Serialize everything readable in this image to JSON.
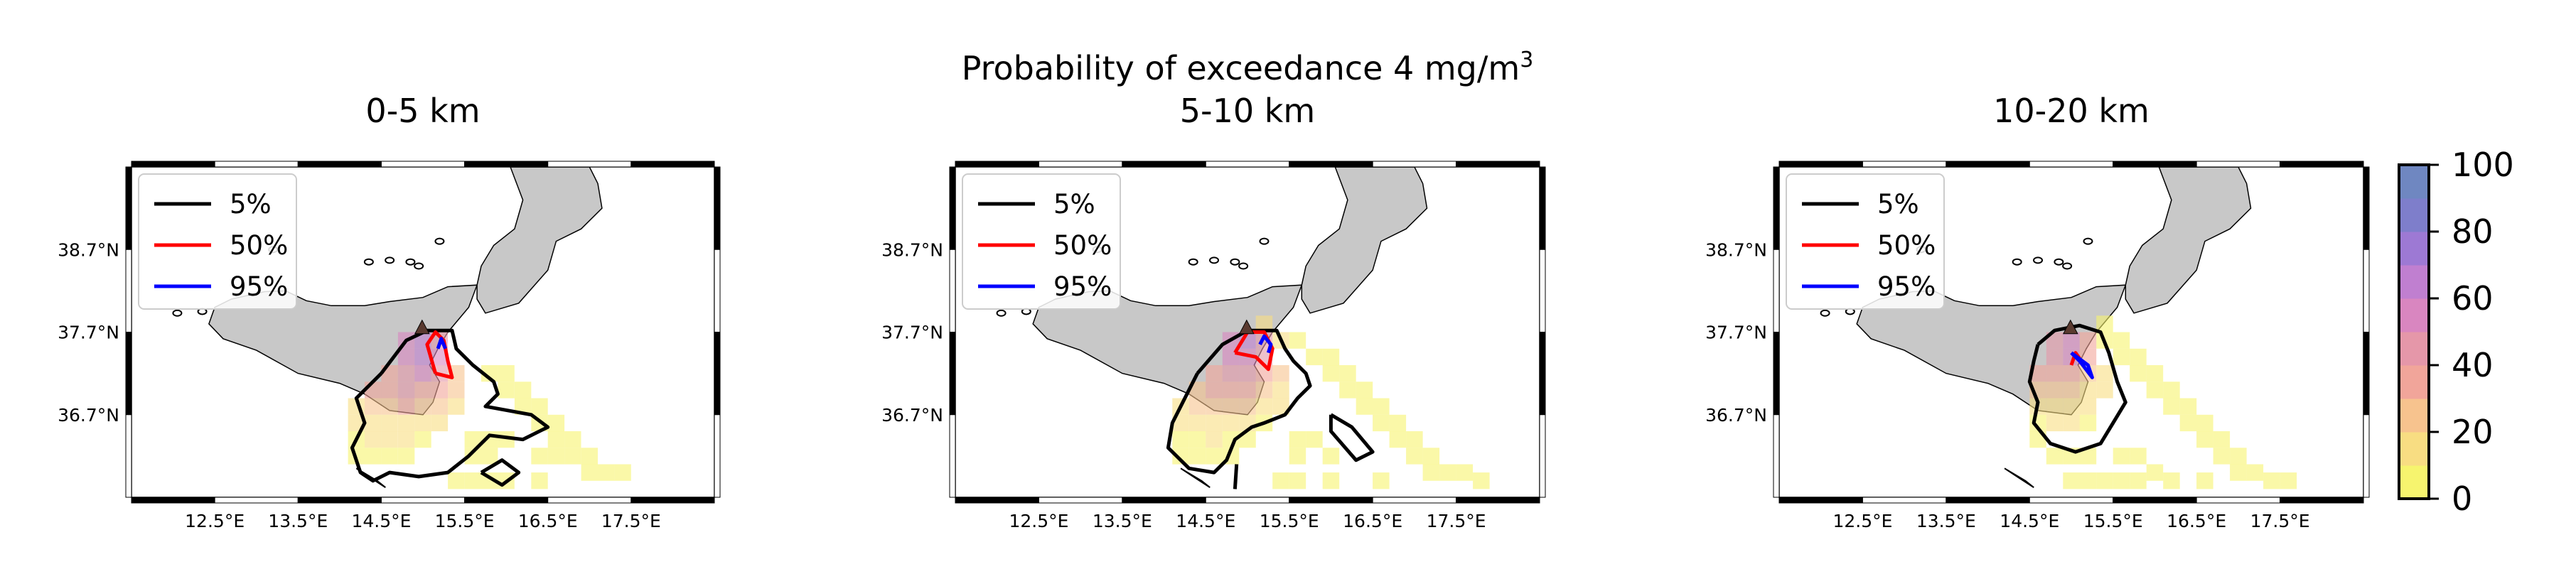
{
  "figure": {
    "suptitle_line1": "Probability of exceedance 4 mg/m",
    "suptitle_sup": "3"
  },
  "chart_data": {
    "type": "heatmap",
    "title": "Probability of exceedance 4 mg/m3",
    "unit": "%",
    "panels": [
      {
        "title": "0-5 km",
        "lon_ticks": [
          "12.5°E",
          "13.5°E",
          "14.5°E",
          "15.5°E",
          "16.5°E",
          "17.5°E"
        ],
        "lat_ticks": [
          "38.7°N",
          "37.7°N",
          "36.7°N"
        ],
        "lon_range": [
          11.5,
          18.5
        ],
        "lat_range": [
          35.7,
          39.7
        ],
        "contour_levels": [
          5,
          50,
          95
        ],
        "cells": [
          [
            16.0,
            37.0,
            5
          ],
          [
            16.2,
            37.0,
            5
          ],
          [
            16.2,
            36.8,
            5
          ],
          [
            16.4,
            36.8,
            5
          ],
          [
            16.4,
            36.6,
            5
          ],
          [
            16.6,
            36.6,
            5
          ],
          [
            16.6,
            36.4,
            5
          ],
          [
            16.8,
            36.4,
            5
          ],
          [
            16.8,
            36.2,
            5
          ],
          [
            17.0,
            36.2,
            5
          ],
          [
            17.0,
            36.0,
            5
          ],
          [
            17.2,
            36.0,
            5
          ],
          [
            17.4,
            36.0,
            5
          ],
          [
            15.8,
            37.2,
            8
          ],
          [
            16.0,
            37.2,
            5
          ],
          [
            15.6,
            36.4,
            8
          ],
          [
            15.8,
            36.4,
            5
          ],
          [
            16.0,
            36.4,
            5
          ],
          [
            15.6,
            36.2,
            5
          ],
          [
            15.8,
            36.2,
            5
          ],
          [
            16.4,
            36.2,
            5
          ],
          [
            16.6,
            36.2,
            5
          ],
          [
            15.4,
            35.9,
            8
          ],
          [
            15.6,
            35.9,
            5
          ],
          [
            15.8,
            35.9,
            5
          ],
          [
            16.0,
            35.9,
            5
          ],
          [
            16.4,
            35.9,
            5
          ],
          [
            14.8,
            37.6,
            55
          ],
          [
            15.0,
            37.6,
            60
          ],
          [
            15.2,
            37.6,
            45
          ],
          [
            14.8,
            37.4,
            50
          ],
          [
            15.0,
            37.4,
            60
          ],
          [
            15.2,
            37.4,
            50
          ],
          [
            14.6,
            37.2,
            38
          ],
          [
            14.8,
            37.2,
            45
          ],
          [
            15.0,
            37.2,
            50
          ],
          [
            15.2,
            37.2,
            40
          ],
          [
            15.4,
            37.2,
            25
          ],
          [
            14.4,
            37.0,
            30
          ],
          [
            14.6,
            37.0,
            35
          ],
          [
            14.8,
            37.0,
            40
          ],
          [
            15.0,
            37.0,
            38
          ],
          [
            15.2,
            37.0,
            30
          ],
          [
            15.4,
            37.0,
            22
          ],
          [
            14.2,
            36.8,
            18
          ],
          [
            14.4,
            36.8,
            22
          ],
          [
            14.6,
            36.8,
            28
          ],
          [
            14.8,
            36.8,
            30
          ],
          [
            15.0,
            36.8,
            25
          ],
          [
            15.2,
            36.8,
            20
          ],
          [
            15.4,
            36.8,
            15
          ],
          [
            14.2,
            36.6,
            12
          ],
          [
            14.4,
            36.6,
            15
          ],
          [
            14.6,
            36.6,
            18
          ],
          [
            14.8,
            36.6,
            18
          ],
          [
            15.0,
            36.6,
            15
          ],
          [
            15.2,
            36.6,
            10
          ],
          [
            14.2,
            36.4,
            8
          ],
          [
            14.4,
            36.4,
            10
          ],
          [
            14.6,
            36.4,
            10
          ],
          [
            14.8,
            36.4,
            10
          ],
          [
            15.0,
            36.4,
            8
          ],
          [
            14.2,
            36.2,
            5
          ],
          [
            14.4,
            36.2,
            8
          ],
          [
            14.6,
            36.2,
            8
          ],
          [
            14.8,
            36.2,
            5
          ]
        ]
      },
      {
        "title": "5-10 km",
        "lon_ticks": [
          "12.5°E",
          "13.5°E",
          "14.5°E",
          "15.5°E",
          "16.5°E",
          "17.5°E"
        ],
        "lat_ticks": [
          "38.7°N",
          "37.7°N",
          "36.7°N"
        ],
        "lon_range": [
          11.5,
          18.5
        ],
        "lat_range": [
          35.7,
          39.7
        ],
        "contour_levels": [
          5,
          50,
          95
        ],
        "cells": [
          [
            15.2,
            37.8,
            10
          ],
          [
            15.4,
            37.6,
            12
          ],
          [
            15.6,
            37.6,
            8
          ],
          [
            15.8,
            37.4,
            8
          ],
          [
            16.0,
            37.4,
            5
          ],
          [
            16.0,
            37.2,
            5
          ],
          [
            16.2,
            37.2,
            5
          ],
          [
            16.2,
            37.0,
            5
          ],
          [
            16.4,
            37.0,
            5
          ],
          [
            16.4,
            36.8,
            5
          ],
          [
            16.6,
            36.8,
            5
          ],
          [
            16.6,
            36.6,
            5
          ],
          [
            16.8,
            36.6,
            5
          ],
          [
            16.8,
            36.4,
            5
          ],
          [
            17.0,
            36.4,
            5
          ],
          [
            17.0,
            36.2,
            5
          ],
          [
            17.2,
            36.2,
            5
          ],
          [
            17.2,
            36.0,
            5
          ],
          [
            17.4,
            36.0,
            5
          ],
          [
            17.6,
            36.0,
            5
          ],
          [
            17.8,
            35.9,
            5
          ],
          [
            15.6,
            36.4,
            8
          ],
          [
            15.8,
            36.4,
            5
          ],
          [
            16.0,
            36.2,
            5
          ],
          [
            15.6,
            36.2,
            5
          ],
          [
            15.4,
            35.9,
            8
          ],
          [
            15.6,
            35.9,
            5
          ],
          [
            16.0,
            35.9,
            5
          ],
          [
            16.6,
            35.9,
            5
          ],
          [
            14.8,
            37.6,
            55
          ],
          [
            15.0,
            37.6,
            60
          ],
          [
            15.2,
            37.6,
            40
          ],
          [
            14.8,
            37.4,
            55
          ],
          [
            15.0,
            37.4,
            55
          ],
          [
            15.2,
            37.4,
            42
          ],
          [
            14.6,
            37.2,
            35
          ],
          [
            14.8,
            37.2,
            45
          ],
          [
            15.0,
            37.2,
            42
          ],
          [
            15.2,
            37.2,
            32
          ],
          [
            15.4,
            37.2,
            20
          ],
          [
            14.4,
            37.0,
            28
          ],
          [
            14.6,
            37.0,
            32
          ],
          [
            14.8,
            37.0,
            35
          ],
          [
            15.0,
            37.0,
            30
          ],
          [
            15.2,
            37.0,
            25
          ],
          [
            15.4,
            37.0,
            18
          ],
          [
            14.2,
            36.8,
            15
          ],
          [
            14.4,
            36.8,
            20
          ],
          [
            14.6,
            36.8,
            25
          ],
          [
            14.8,
            36.8,
            25
          ],
          [
            15.0,
            36.8,
            20
          ],
          [
            15.2,
            36.8,
            15
          ],
          [
            15.4,
            36.8,
            12
          ],
          [
            14.2,
            36.6,
            10
          ],
          [
            14.4,
            36.6,
            12
          ],
          [
            14.6,
            36.6,
            15
          ],
          [
            14.8,
            36.6,
            15
          ],
          [
            15.0,
            36.6,
            12
          ],
          [
            15.2,
            36.6,
            8
          ],
          [
            14.2,
            36.4,
            8
          ],
          [
            14.4,
            36.4,
            8
          ],
          [
            14.6,
            36.4,
            10
          ],
          [
            14.8,
            36.4,
            8
          ],
          [
            15.0,
            36.4,
            5
          ],
          [
            14.2,
            36.2,
            5
          ],
          [
            14.4,
            36.2,
            5
          ],
          [
            14.6,
            36.2,
            8
          ],
          [
            14.8,
            36.2,
            5
          ]
        ]
      },
      {
        "title": "10-20 km",
        "lon_ticks": [
          "12.5°E",
          "13.5°E",
          "14.5°E",
          "15.5°E",
          "16.5°E",
          "17.5°E"
        ],
        "lat_ticks": [
          "38.7°N",
          "37.7°N",
          "36.7°N"
        ],
        "lon_range": [
          11.5,
          18.5
        ],
        "lat_range": [
          35.7,
          39.7
        ],
        "contour_levels": [
          5,
          50,
          95
        ],
        "cells": [
          [
            15.4,
            37.8,
            8
          ],
          [
            15.4,
            37.6,
            8
          ],
          [
            15.6,
            37.6,
            5
          ],
          [
            15.6,
            37.4,
            5
          ],
          [
            15.8,
            37.4,
            5
          ],
          [
            15.8,
            37.2,
            5
          ],
          [
            16.0,
            37.2,
            5
          ],
          [
            16.0,
            37.0,
            5
          ],
          [
            16.2,
            37.0,
            5
          ],
          [
            16.2,
            36.8,
            5
          ],
          [
            16.4,
            36.8,
            5
          ],
          [
            16.4,
            36.6,
            5
          ],
          [
            16.6,
            36.6,
            5
          ],
          [
            16.6,
            36.4,
            5
          ],
          [
            16.8,
            36.4,
            5
          ],
          [
            16.8,
            36.2,
            5
          ],
          [
            17.0,
            36.2,
            5
          ],
          [
            17.0,
            36.0,
            5
          ],
          [
            17.2,
            36.0,
            5
          ],
          [
            17.4,
            35.9,
            5
          ],
          [
            17.6,
            35.9,
            5
          ],
          [
            15.6,
            36.2,
            5
          ],
          [
            15.8,
            36.2,
            5
          ],
          [
            16.0,
            36.0,
            5
          ],
          [
            15.6,
            35.9,
            5
          ],
          [
            15.8,
            35.9,
            5
          ],
          [
            16.2,
            35.9,
            5
          ],
          [
            16.6,
            35.9,
            5
          ],
          [
            14.6,
            36.4,
            5
          ],
          [
            14.8,
            36.2,
            5
          ],
          [
            15.0,
            36.2,
            5
          ],
          [
            15.2,
            36.2,
            5
          ],
          [
            15.0,
            35.9,
            5
          ],
          [
            15.2,
            35.9,
            5
          ],
          [
            15.4,
            35.9,
            5
          ],
          [
            14.8,
            37.6,
            40
          ],
          [
            15.0,
            37.6,
            50
          ],
          [
            15.2,
            37.6,
            35
          ],
          [
            14.8,
            37.4,
            45
          ],
          [
            15.0,
            37.4,
            50
          ],
          [
            15.2,
            37.4,
            38
          ],
          [
            14.6,
            37.2,
            30
          ],
          [
            14.8,
            37.2,
            38
          ],
          [
            15.0,
            37.2,
            35
          ],
          [
            15.2,
            37.2,
            25
          ],
          [
            15.4,
            37.2,
            15
          ],
          [
            14.6,
            37.0,
            22
          ],
          [
            14.8,
            37.0,
            28
          ],
          [
            15.0,
            37.0,
            25
          ],
          [
            15.2,
            37.0,
            18
          ],
          [
            15.4,
            37.0,
            12
          ],
          [
            14.6,
            36.8,
            15
          ],
          [
            14.8,
            36.8,
            18
          ],
          [
            15.0,
            36.8,
            15
          ],
          [
            15.2,
            36.8,
            10
          ],
          [
            14.6,
            36.6,
            8
          ],
          [
            14.8,
            36.6,
            10
          ],
          [
            15.0,
            36.6,
            10
          ],
          [
            15.2,
            36.6,
            8
          ]
        ]
      }
    ],
    "legend": {
      "placement": "upper-left",
      "entries": [
        {
          "label": "5%",
          "color": "#000000"
        },
        {
          "label": "50%",
          "color": "#ff0000"
        },
        {
          "label": "95%",
          "color": "#0000ff"
        }
      ]
    },
    "colorbar": {
      "ticks": [
        "0",
        "20",
        "40",
        "60",
        "80",
        "100"
      ],
      "range": [
        0,
        100
      ],
      "colors": [
        "#f6f46e",
        "#f8dd82",
        "#f7c38e",
        "#f1a59a",
        "#e597a9",
        "#d986c0",
        "#c07fd0",
        "#9d79d4",
        "#7e7ecb",
        "#6f87c1"
      ]
    },
    "land_color": "#c8c8c8"
  }
}
